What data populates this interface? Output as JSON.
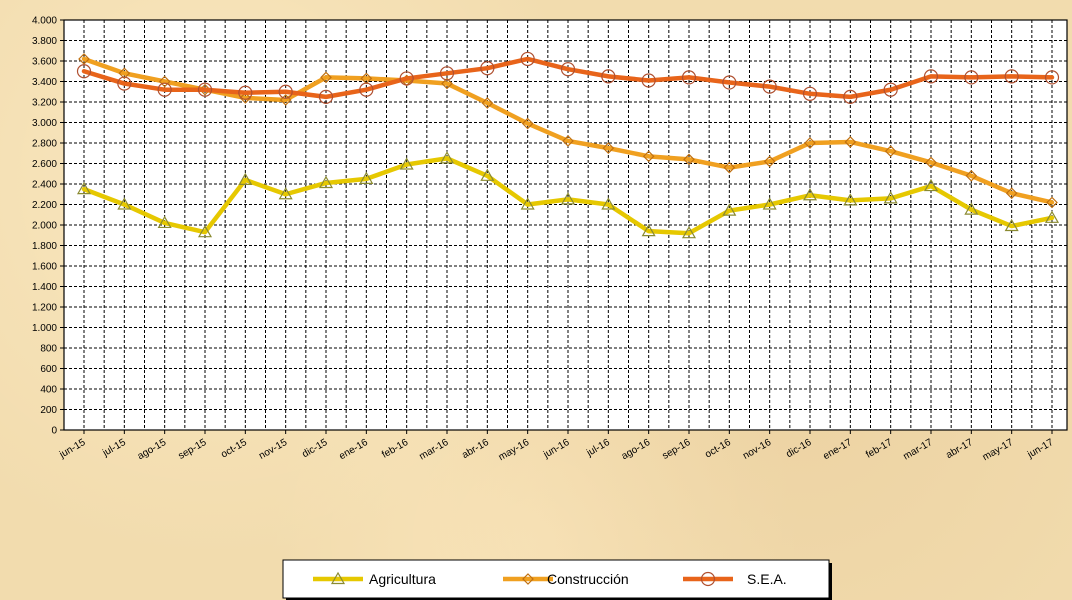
{
  "chart_data": {
    "type": "line",
    "title": "",
    "xlabel": "",
    "ylabel": "",
    "ylim": [
      0,
      4000
    ],
    "ytick_step": 200,
    "grid": true,
    "legend_position": "bottom-center",
    "categories": [
      "jun-15",
      "jul-15",
      "ago-15",
      "sep-15",
      "oct-15",
      "nov-15",
      "dic-15",
      "ene-16",
      "feb-16",
      "mar-16",
      "abr-16",
      "may-16",
      "jun-16",
      "jul-16",
      "ago-16",
      "sep-16",
      "oct-16",
      "nov-16",
      "dic-16",
      "ene-17",
      "feb-17",
      "mar-17",
      "abr-17",
      "may-17",
      "jun-17"
    ],
    "series": [
      {
        "name": "Agricultura",
        "color": "#e6c800",
        "marker": "triangle",
        "values": [
          2350,
          2200,
          2020,
          1930,
          2440,
          2300,
          2410,
          2450,
          2590,
          2650,
          2480,
          2200,
          2250,
          2200,
          1940,
          1920,
          2140,
          2200,
          2290,
          2240,
          2260,
          2380,
          2150,
          1990,
          2070
        ]
      },
      {
        "name": "Construcción",
        "color": "#f0a020",
        "marker": "diamond",
        "values": [
          3620,
          3480,
          3400,
          3320,
          3240,
          3220,
          3440,
          3430,
          3410,
          3380,
          3190,
          2990,
          2820,
          2750,
          2670,
          2640,
          2560,
          2620,
          2800,
          2810,
          2720,
          2610,
          2480,
          2310,
          2220
        ]
      },
      {
        "name": "S.E.A.",
        "color": "#e8641a",
        "marker": "circle",
        "values": [
          3500,
          3380,
          3320,
          3320,
          3290,
          3300,
          3250,
          3320,
          3430,
          3480,
          3530,
          3620,
          3520,
          3450,
          3410,
          3440,
          3390,
          3350,
          3280,
          3250,
          3320,
          3450,
          3440,
          3450,
          3440
        ]
      }
    ]
  }
}
